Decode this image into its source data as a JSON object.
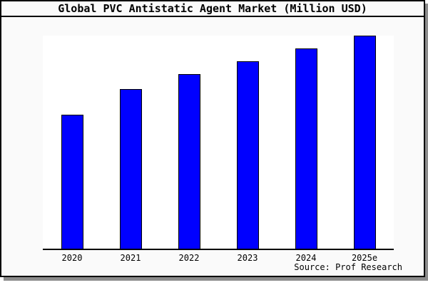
{
  "window": {
    "title": "Global PVC Antistatic Agent Market (Million USD)",
    "source_note": "Source: Prof Research"
  },
  "chart_data": {
    "type": "bar",
    "title": "Global PVC Antistatic Agent Market (Million USD)",
    "categories": [
      "2020",
      "2021",
      "2022",
      "2023",
      "2024",
      "2025e"
    ],
    "values": [
      63,
      75,
      82,
      88,
      94,
      100
    ],
    "value_scale_note": "y-axis has no tick labels or gridlines; values estimated relative to tallest bar = 100",
    "xlabel": "",
    "ylabel": "",
    "ylim": [
      0,
      100
    ],
    "legend": "none",
    "gridlines": false,
    "y_axis_visible": false,
    "source": "Source: Prof Research",
    "colors": {
      "bar_fill": "#0000ff",
      "bar_border": "#000000",
      "plot_background": "#ffffff",
      "figure_background": "#fafafa",
      "frame_border": "#000000",
      "shadow": "#8c8c8c",
      "text": "#000000"
    }
  }
}
